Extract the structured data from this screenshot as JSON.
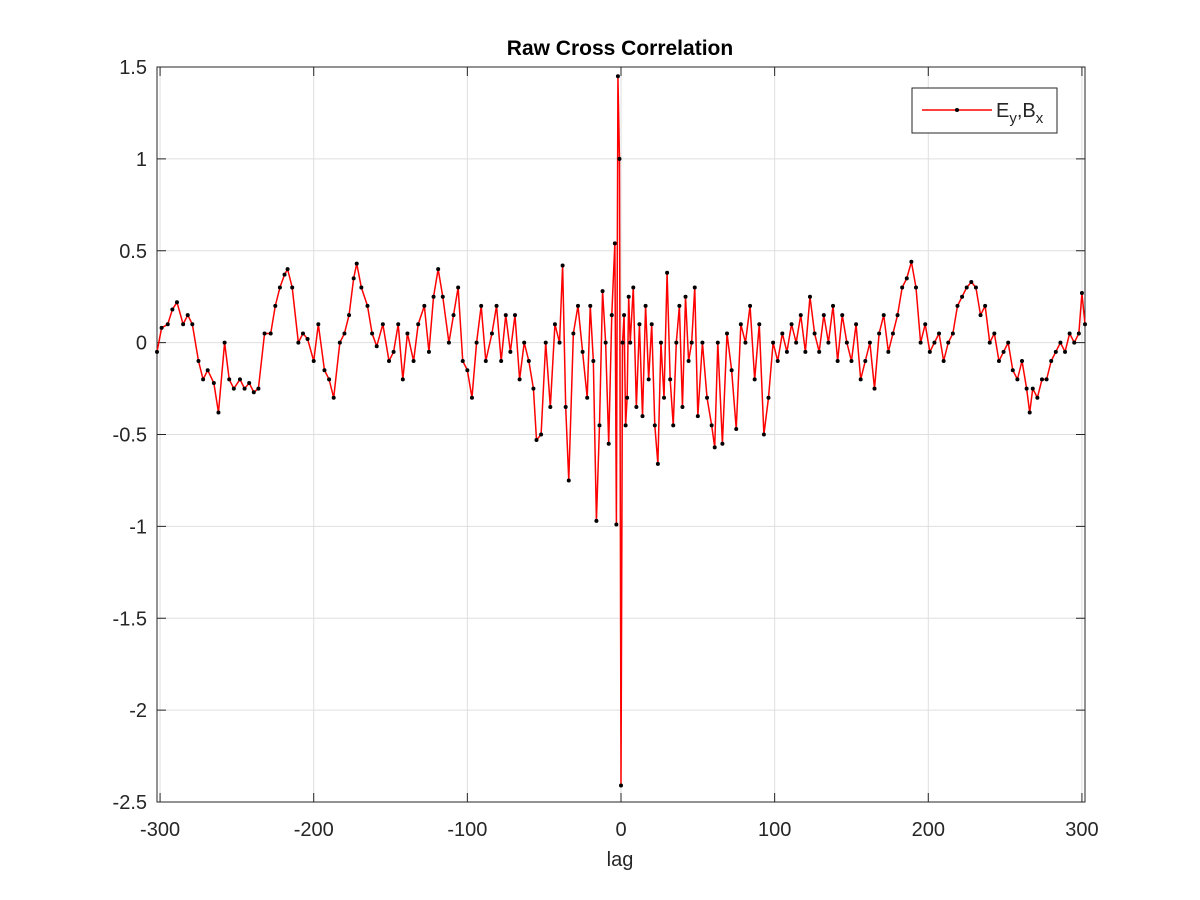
{
  "chart_data": {
    "type": "line",
    "title": "Raw Cross Correlation",
    "x_label": "lag",
    "x": [
      -302,
      -299,
      -295,
      -292,
      -289,
      -285,
      -282,
      -279,
      -275,
      -272,
      -269,
      -265,
      -262,
      -258,
      -255,
      -252,
      -248,
      -245,
      -242,
      -239,
      -236,
      -232,
      -228,
      -225,
      -222,
      -219,
      -217,
      -214,
      -210,
      -207,
      -204,
      -200,
      -197,
      -193,
      -190,
      -187,
      -183,
      -180,
      -177,
      -174,
      -172,
      -169,
      -165,
      -162,
      -159,
      -155,
      -151,
      -148,
      -145,
      -142,
      -139,
      -135,
      -132,
      -128,
      -125,
      -122,
      -119,
      -116,
      -112,
      -109,
      -106,
      -103,
      -100,
      -97,
      -94,
      -91,
      -88,
      -84,
      -81,
      -78,
      -75,
      -72,
      -69,
      -66,
      -63,
      -60,
      -57,
      -55,
      -52,
      -49,
      -46,
      -43,
      -40,
      -38,
      -36,
      -34,
      -31,
      -28,
      -25,
      -22,
      -20,
      -18,
      -16,
      -14,
      -12,
      -10,
      -8,
      -6,
      -4,
      -3,
      -2,
      -1,
      0,
      1,
      2,
      3,
      4,
      5,
      6,
      8,
      10,
      12,
      14,
      16,
      18,
      20,
      22,
      24,
      26,
      28,
      30,
      32,
      34,
      36,
      38,
      40,
      42,
      44,
      46,
      48,
      50,
      53,
      56,
      59,
      61,
      63,
      66,
      69,
      72,
      75,
      78,
      81,
      84,
      87,
      90,
      93,
      96,
      99,
      102,
      105,
      108,
      111,
      114,
      117,
      120,
      123,
      126,
      129,
      132,
      135,
      138,
      141,
      144,
      147,
      150,
      153,
      156,
      159,
      162,
      165,
      168,
      171,
      174,
      177,
      180,
      183,
      186,
      189,
      192,
      195,
      198,
      201,
      204,
      207,
      210,
      213,
      216,
      219,
      222,
      225,
      228,
      231,
      234,
      237,
      240,
      243,
      246,
      249,
      252,
      255,
      258,
      261,
      264,
      266,
      268,
      271,
      274,
      277,
      280,
      283,
      286,
      289,
      292,
      295,
      298,
      300,
      302
    ],
    "series": [
      {
        "name": [
          "E",
          "y",
          ",B",
          "x"
        ],
        "color": "#ff0000",
        "marker_color": "#000000",
        "values": [
          -0.05,
          0.08,
          0.1,
          0.18,
          0.22,
          0.1,
          0.15,
          0.1,
          -0.1,
          -0.2,
          -0.15,
          -0.22,
          -0.38,
          0.0,
          -0.2,
          -0.25,
          -0.2,
          -0.25,
          -0.22,
          -0.27,
          -0.25,
          0.05,
          0.05,
          0.2,
          0.3,
          0.37,
          0.4,
          0.3,
          0.0,
          0.05,
          0.02,
          -0.1,
          0.1,
          -0.15,
          -0.2,
          -0.3,
          0.0,
          0.05,
          0.15,
          0.35,
          0.43,
          0.3,
          0.2,
          0.05,
          -0.02,
          0.1,
          -0.1,
          -0.05,
          0.1,
          -0.2,
          0.05,
          -0.1,
          0.1,
          0.2,
          -0.05,
          0.25,
          0.4,
          0.25,
          0.0,
          0.15,
          0.3,
          -0.1,
          -0.15,
          -0.3,
          0.0,
          0.2,
          -0.1,
          0.05,
          0.2,
          -0.1,
          0.15,
          -0.05,
          0.15,
          -0.2,
          0.0,
          -0.1,
          -0.25,
          -0.53,
          -0.5,
          0.0,
          -0.35,
          0.1,
          0.0,
          0.42,
          -0.35,
          -0.75,
          0.05,
          0.2,
          -0.05,
          -0.3,
          0.2,
          -0.1,
          -0.97,
          -0.45,
          0.28,
          0.0,
          -0.55,
          0.15,
          0.54,
          -0.99,
          1.45,
          1.0,
          -2.41,
          0.0,
          0.15,
          -0.45,
          -0.3,
          0.25,
          0.0,
          0.3,
          -0.35,
          0.1,
          -0.4,
          0.2,
          -0.2,
          0.1,
          -0.45,
          -0.66,
          0.0,
          -0.3,
          0.38,
          -0.2,
          -0.45,
          0.0,
          0.2,
          -0.35,
          0.25,
          -0.1,
          0.0,
          0.3,
          -0.4,
          0.0,
          -0.3,
          -0.45,
          -0.57,
          0.0,
          -0.55,
          0.05,
          -0.15,
          -0.47,
          0.1,
          0.0,
          0.2,
          -0.2,
          0.1,
          -0.5,
          -0.3,
          0.0,
          -0.1,
          0.05,
          -0.05,
          0.1,
          0.0,
          0.15,
          -0.05,
          0.25,
          0.05,
          -0.05,
          0.15,
          0.0,
          0.2,
          -0.1,
          0.15,
          0.0,
          -0.1,
          0.1,
          -0.2,
          -0.1,
          0.0,
          -0.25,
          0.05,
          0.15,
          -0.05,
          0.05,
          0.15,
          0.3,
          0.35,
          0.44,
          0.3,
          0.0,
          0.1,
          -0.05,
          0.0,
          0.05,
          -0.1,
          0.0,
          0.05,
          0.2,
          0.25,
          0.3,
          0.33,
          0.3,
          0.15,
          0.2,
          0.0,
          0.05,
          -0.1,
          -0.05,
          0.0,
          -0.15,
          -0.2,
          -0.1,
          -0.25,
          -0.38,
          -0.25,
          -0.3,
          -0.2,
          -0.2,
          -0.1,
          -0.05,
          0.0,
          -0.05,
          0.05,
          0.0,
          0.05,
          0.27,
          0.1
        ]
      }
    ],
    "xlim": [
      -302,
      302
    ],
    "ylim": [
      -2.5,
      1.5
    ],
    "xticks": [
      -300,
      -200,
      -100,
      0,
      100,
      200,
      300
    ],
    "yticks": [
      -2.5,
      -2,
      -1.5,
      -1,
      -0.5,
      0,
      0.5,
      1,
      1.5
    ],
    "grid": true,
    "legend": "northeast"
  }
}
